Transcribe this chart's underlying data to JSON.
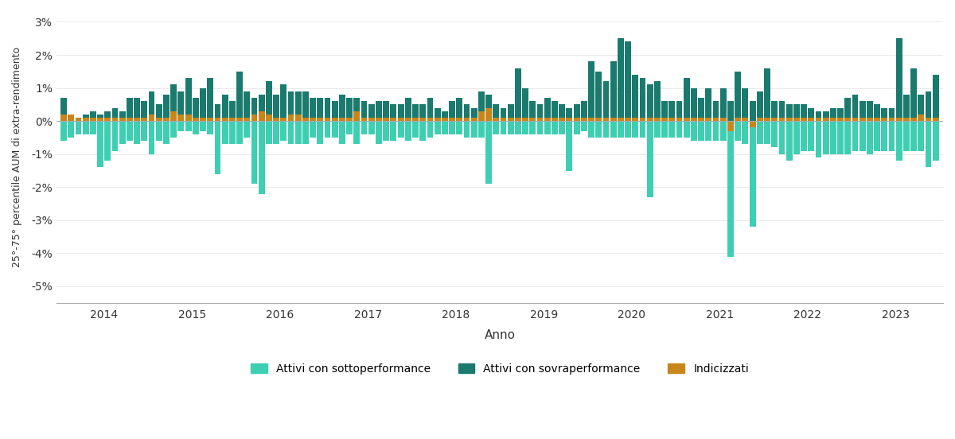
{
  "title": "",
  "ylabel": "25°-75° percentile AUM di extra-rendimento",
  "xlabel": "Anno",
  "background_color": "#ffffff",
  "color_under": "#3ecfb2",
  "color_over": "#1a7a6e",
  "color_index": "#c8861a",
  "ylim": [
    -0.055,
    0.033
  ],
  "yticks": [
    -0.05,
    -0.04,
    -0.03,
    -0.02,
    -0.01,
    0.0,
    0.01,
    0.02,
    0.03
  ],
  "ytick_labels": [
    "-5%",
    "-4%",
    "-3%",
    "-2%",
    "-1%",
    "0%",
    "1%",
    "2%",
    "3%"
  ],
  "legend_labels": [
    "Attivi con sottoperformance",
    "Attivi con sovraperformance",
    "Indicizzati"
  ],
  "bar_width": 0.85,
  "active_under": [
    -0.006,
    -0.005,
    -0.004,
    -0.004,
    -0.004,
    -0.014,
    -0.012,
    -0.009,
    -0.007,
    -0.006,
    -0.007,
    -0.006,
    -0.01,
    -0.006,
    -0.007,
    -0.005,
    -0.003,
    -0.003,
    -0.004,
    -0.003,
    -0.004,
    -0.016,
    -0.007,
    -0.007,
    -0.007,
    -0.005,
    -0.019,
    -0.022,
    -0.007,
    -0.007,
    -0.006,
    -0.007,
    -0.007,
    -0.007,
    -0.005,
    -0.007,
    -0.005,
    -0.005,
    -0.007,
    -0.004,
    -0.007,
    -0.004,
    -0.004,
    -0.007,
    -0.006,
    -0.006,
    -0.005,
    -0.006,
    -0.005,
    -0.006,
    -0.005,
    -0.004,
    -0.004,
    -0.004,
    -0.004,
    -0.005,
    -0.005,
    -0.005,
    -0.019,
    -0.004,
    -0.004,
    -0.004,
    -0.004,
    -0.004,
    -0.004,
    -0.004,
    -0.004,
    -0.004,
    -0.004,
    -0.015,
    -0.004,
    -0.003,
    -0.005,
    -0.005,
    -0.005,
    -0.005,
    -0.005,
    -0.005,
    -0.005,
    -0.005,
    -0.023,
    -0.005,
    -0.005,
    -0.005,
    -0.005,
    -0.005,
    -0.006,
    -0.006,
    -0.006,
    -0.006,
    -0.006,
    -0.041,
    -0.006,
    -0.007,
    -0.032,
    -0.007,
    -0.007,
    -0.008,
    -0.01,
    -0.012,
    -0.01,
    -0.009,
    -0.009,
    -0.011,
    -0.01,
    -0.01,
    -0.01,
    -0.01,
    -0.009,
    -0.009,
    -0.01,
    -0.009,
    -0.009,
    -0.009,
    -0.012,
    -0.009,
    -0.009,
    -0.009,
    -0.014,
    -0.012
  ],
  "active_over": [
    0.007,
    0.002,
    0.001,
    0.002,
    0.003,
    0.002,
    0.003,
    0.004,
    0.003,
    0.007,
    0.007,
    0.006,
    0.009,
    0.005,
    0.008,
    0.011,
    0.009,
    0.013,
    0.007,
    0.01,
    0.013,
    0.005,
    0.008,
    0.006,
    0.015,
    0.009,
    0.007,
    0.008,
    0.012,
    0.008,
    0.011,
    0.009,
    0.009,
    0.009,
    0.007,
    0.007,
    0.007,
    0.006,
    0.008,
    0.007,
    0.007,
    0.006,
    0.005,
    0.006,
    0.006,
    0.005,
    0.005,
    0.007,
    0.005,
    0.005,
    0.007,
    0.004,
    0.003,
    0.006,
    0.007,
    0.005,
    0.004,
    0.009,
    0.008,
    0.005,
    0.004,
    0.005,
    0.016,
    0.01,
    0.006,
    0.005,
    0.007,
    0.006,
    0.005,
    0.004,
    0.005,
    0.006,
    0.018,
    0.015,
    0.012,
    0.018,
    0.025,
    0.024,
    0.014,
    0.013,
    0.011,
    0.012,
    0.006,
    0.006,
    0.006,
    0.013,
    0.01,
    0.007,
    0.01,
    0.006,
    0.01,
    0.006,
    0.015,
    0.01,
    0.006,
    0.009,
    0.016,
    0.006,
    0.006,
    0.005,
    0.005,
    0.005,
    0.004,
    0.003,
    0.003,
    0.004,
    0.004,
    0.007,
    0.008,
    0.006,
    0.006,
    0.005,
    0.004,
    0.004,
    0.025,
    0.008,
    0.016,
    0.008,
    0.009,
    0.014
  ],
  "indexed": [
    0.002,
    0.002,
    0.001,
    0.001,
    0.001,
    0.001,
    0.001,
    0.001,
    0.001,
    0.001,
    0.001,
    0.001,
    0.002,
    0.001,
    0.001,
    0.003,
    0.002,
    0.002,
    0.001,
    0.001,
    0.001,
    0.001,
    0.001,
    0.001,
    0.001,
    0.001,
    0.002,
    0.003,
    0.002,
    0.001,
    0.001,
    0.002,
    0.002,
    0.001,
    0.001,
    0.001,
    0.001,
    0.001,
    0.001,
    0.001,
    0.003,
    0.001,
    0.001,
    0.001,
    0.001,
    0.001,
    0.001,
    0.001,
    0.001,
    0.001,
    0.001,
    0.001,
    0.001,
    0.001,
    0.001,
    0.001,
    0.001,
    0.003,
    0.004,
    0.001,
    0.001,
    0.001,
    0.001,
    0.001,
    0.001,
    0.001,
    0.001,
    0.001,
    0.001,
    0.001,
    0.001,
    0.001,
    0.001,
    0.001,
    0.001,
    0.001,
    0.001,
    0.001,
    0.001,
    0.001,
    0.001,
    0.001,
    0.001,
    0.001,
    0.001,
    0.001,
    0.001,
    0.001,
    0.001,
    0.001,
    0.001,
    -0.003,
    0.001,
    0.001,
    -0.002,
    0.001,
    0.001,
    0.001,
    0.001,
    0.001,
    0.001,
    0.001,
    0.001,
    0.001,
    0.001,
    0.001,
    0.001,
    0.001,
    0.001,
    0.001,
    0.001,
    0.001,
    0.001,
    0.001,
    0.001,
    0.001,
    0.001,
    0.002,
    0.001,
    0.001
  ],
  "n_months": 120,
  "year_starts": [
    0,
    12,
    24,
    36,
    48,
    60,
    72,
    84,
    96,
    108
  ],
  "year_names": [
    "2014",
    "2015",
    "2016",
    "2017",
    "2018",
    "2019",
    "2020",
    "2021",
    "2022",
    "2023"
  ]
}
